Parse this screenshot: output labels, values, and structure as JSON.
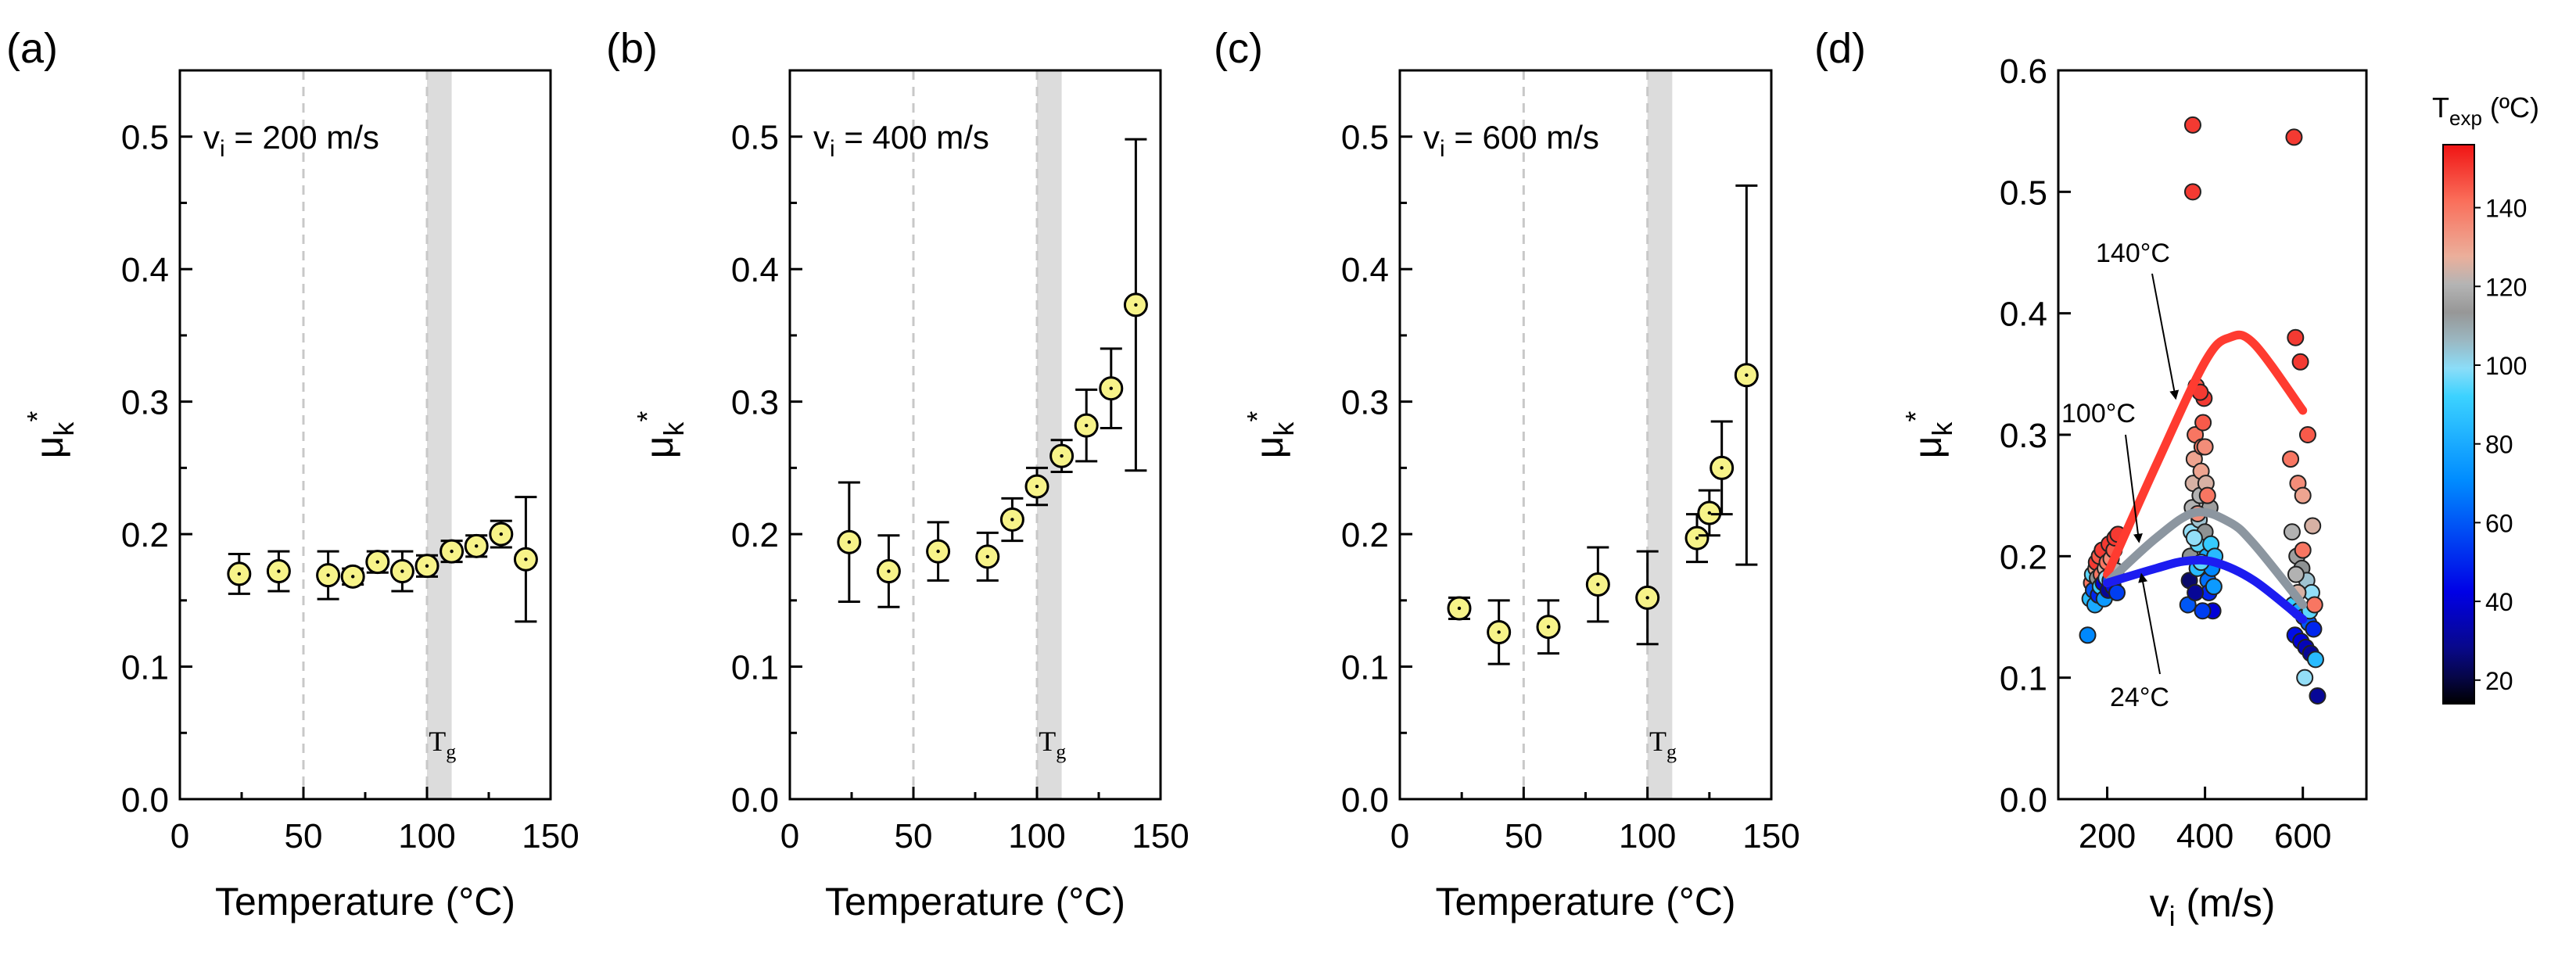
{
  "colors": {
    "marker_fill": "#f7f389",
    "marker_edge": "#000000",
    "tg_band": "#dcdcdc",
    "ref_line": "#c8c8c8",
    "curve_140": "#ff3b30",
    "curve_100": "#8c96a0",
    "curve_24": "#1c1cf0"
  },
  "chart_data": [
    {
      "type": "scatter",
      "panel_label": "(a)",
      "annotation": "v",
      "annotation_sub": "i",
      "annotation_rest": " = 200 m/s",
      "tg_label": "T",
      "tg_sub": "g",
      "tg_band": [
        100,
        110
      ],
      "ref_lines_x": [
        50,
        100
      ],
      "xlabel": "Temperature (°C)",
      "ylabel": "μ",
      "ylabel_sub": "k",
      "ylabel_sup": "*",
      "xlim": [
        0,
        150
      ],
      "ylim": [
        0,
        0.55
      ],
      "xticks": [
        "0",
        "50",
        "100",
        "150"
      ],
      "yticks": [
        "0.0",
        "0.1",
        "0.2",
        "0.3",
        "0.4",
        "0.5"
      ],
      "points": [
        {
          "x": 24,
          "y": 0.17,
          "err": 0.015
        },
        {
          "x": 40,
          "y": 0.172,
          "err": 0.015
        },
        {
          "x": 60,
          "y": 0.169,
          "err": 0.018
        },
        {
          "x": 70,
          "y": 0.168,
          "err": 0.006
        },
        {
          "x": 80,
          "y": 0.179,
          "err": 0.008
        },
        {
          "x": 90,
          "y": 0.172,
          "err": 0.015
        },
        {
          "x": 100,
          "y": 0.176,
          "err": 0.008
        },
        {
          "x": 110,
          "y": 0.187,
          "err": 0.008
        },
        {
          "x": 120,
          "y": 0.191,
          "err": 0.008
        },
        {
          "x": 130,
          "y": 0.2,
          "err": 0.01
        },
        {
          "x": 140,
          "y": 0.181,
          "err": 0.047
        }
      ]
    },
    {
      "type": "scatter",
      "panel_label": "(b)",
      "annotation": "v",
      "annotation_sub": "i",
      "annotation_rest": " = 400 m/s",
      "tg_label": "T",
      "tg_sub": "g",
      "tg_band": [
        100,
        110
      ],
      "ref_lines_x": [
        50,
        100
      ],
      "xlabel": "Temperature (°C)",
      "ylabel": "μ",
      "ylabel_sub": "k",
      "ylabel_sup": "*",
      "xlim": [
        0,
        150
      ],
      "ylim": [
        0,
        0.55
      ],
      "xticks": [
        "0",
        "50",
        "100",
        "150"
      ],
      "yticks": [
        "0.0",
        "0.1",
        "0.2",
        "0.3",
        "0.4",
        "0.5"
      ],
      "points": [
        {
          "x": 24,
          "y": 0.194,
          "err": 0.045
        },
        {
          "x": 40,
          "y": 0.172,
          "err": 0.027
        },
        {
          "x": 60,
          "y": 0.187,
          "err": 0.022
        },
        {
          "x": 80,
          "y": 0.183,
          "err": 0.018
        },
        {
          "x": 90,
          "y": 0.211,
          "err": 0.016
        },
        {
          "x": 100,
          "y": 0.236,
          "err": 0.014
        },
        {
          "x": 110,
          "y": 0.259,
          "err": 0.012
        },
        {
          "x": 120,
          "y": 0.282,
          "err": 0.027
        },
        {
          "x": 130,
          "y": 0.31,
          "err": 0.03
        },
        {
          "x": 140,
          "y": 0.373,
          "err": 0.125
        }
      ]
    },
    {
      "type": "scatter",
      "panel_label": "(c)",
      "annotation": "v",
      "annotation_sub": "i",
      "annotation_rest": " = 600 m/s",
      "tg_label": "T",
      "tg_sub": "g",
      "tg_band": [
        100,
        110
      ],
      "ref_lines_x": [
        50,
        100
      ],
      "xlabel": "Temperature (°C)",
      "ylabel": "μ",
      "ylabel_sub": "k",
      "ylabel_sup": "*",
      "xlim": [
        0,
        150
      ],
      "ylim": [
        0,
        0.55
      ],
      "xticks": [
        "0",
        "50",
        "100",
        "150"
      ],
      "yticks": [
        "0.0",
        "0.1",
        "0.2",
        "0.3",
        "0.4",
        "0.5"
      ],
      "points": [
        {
          "x": 24,
          "y": 0.144,
          "err": 0.008
        },
        {
          "x": 40,
          "y": 0.126,
          "err": 0.024
        },
        {
          "x": 60,
          "y": 0.13,
          "err": 0.02
        },
        {
          "x": 80,
          "y": 0.162,
          "err": 0.028
        },
        {
          "x": 100,
          "y": 0.152,
          "err": 0.035
        },
        {
          "x": 120,
          "y": 0.197,
          "err": 0.018
        },
        {
          "x": 125,
          "y": 0.216,
          "err": 0.017
        },
        {
          "x": 130,
          "y": 0.25,
          "err": 0.035
        },
        {
          "x": 140,
          "y": 0.32,
          "err": 0.143
        }
      ]
    },
    {
      "type": "scatter",
      "panel_label": "(d)",
      "xlabel": "v",
      "xlabel_sub": "i",
      "xlabel_rest": " (m/s)",
      "ylabel": "μ",
      "ylabel_sub": "k",
      "ylabel_sup": "*",
      "xlim": [
        100,
        730
      ],
      "ylim": [
        0,
        0.6
      ],
      "xticks": [
        "200",
        "400",
        "600"
      ],
      "yticks": [
        "0.0",
        "0.1",
        "0.2",
        "0.3",
        "0.4",
        "0.5",
        "0.6"
      ],
      "colorbar": {
        "title": "T",
        "title_sub": "exp",
        "title_rest": " (ºC)",
        "min": 14,
        "max": 156,
        "ticks": [
          "20",
          "40",
          "60",
          "80",
          "100",
          "120",
          "140"
        ]
      },
      "curves": [
        {
          "label": "140°C",
          "x": [
            200,
            300,
            400,
            450,
            500,
            600
          ],
          "y": [
            0.185,
            0.275,
            0.36,
            0.38,
            0.375,
            0.32
          ]
        },
        {
          "label": "100°C",
          "x": [
            200,
            300,
            380,
            450,
            500,
            600
          ],
          "y": [
            0.178,
            0.215,
            0.236,
            0.228,
            0.21,
            0.16
          ]
        },
        {
          "label": "24°C",
          "x": [
            200,
            300,
            360,
            420,
            500,
            600
          ],
          "y": [
            0.178,
            0.19,
            0.196,
            0.195,
            0.18,
            0.148
          ]
        }
      ],
      "points": [
        {
          "x": 160,
          "y": 0.135,
          "t": 70
        },
        {
          "x": 165,
          "y": 0.165,
          "t": 85
        },
        {
          "x": 168,
          "y": 0.178,
          "t": 140
        },
        {
          "x": 170,
          "y": 0.185,
          "t": 95
        },
        {
          "x": 172,
          "y": 0.172,
          "t": 60
        },
        {
          "x": 175,
          "y": 0.16,
          "t": 80
        },
        {
          "x": 177,
          "y": 0.19,
          "t": 130
        },
        {
          "x": 178,
          "y": 0.195,
          "t": 150
        },
        {
          "x": 180,
          "y": 0.182,
          "t": 110
        },
        {
          "x": 182,
          "y": 0.168,
          "t": 50
        },
        {
          "x": 184,
          "y": 0.2,
          "t": 145
        },
        {
          "x": 186,
          "y": 0.175,
          "t": 90
        },
        {
          "x": 188,
          "y": 0.185,
          "t": 140
        },
        {
          "x": 190,
          "y": 0.205,
          "t": 150
        },
        {
          "x": 192,
          "y": 0.178,
          "t": 40
        },
        {
          "x": 194,
          "y": 0.165,
          "t": 75
        },
        {
          "x": 196,
          "y": 0.19,
          "t": 125
        },
        {
          "x": 198,
          "y": 0.182,
          "t": 100
        },
        {
          "x": 200,
          "y": 0.195,
          "t": 140
        },
        {
          "x": 202,
          "y": 0.172,
          "t": 30
        },
        {
          "x": 204,
          "y": 0.21,
          "t": 150
        },
        {
          "x": 206,
          "y": 0.18,
          "t": 60
        },
        {
          "x": 208,
          "y": 0.198,
          "t": 135
        },
        {
          "x": 210,
          "y": 0.186,
          "t": 105
        },
        {
          "x": 212,
          "y": 0.175,
          "t": 45
        },
        {
          "x": 214,
          "y": 0.205,
          "t": 145
        },
        {
          "x": 216,
          "y": 0.215,
          "t": 150
        },
        {
          "x": 218,
          "y": 0.188,
          "t": 120
        },
        {
          "x": 220,
          "y": 0.17,
          "t": 55
        },
        {
          "x": 222,
          "y": 0.218,
          "t": 150
        },
        {
          "x": 375,
          "y": 0.555,
          "t": 150
        },
        {
          "x": 375,
          "y": 0.5,
          "t": 150
        },
        {
          "x": 365,
          "y": 0.16,
          "t": 60
        },
        {
          "x": 368,
          "y": 0.18,
          "t": 24
        },
        {
          "x": 370,
          "y": 0.2,
          "t": 110
        },
        {
          "x": 372,
          "y": 0.22,
          "t": 100
        },
        {
          "x": 374,
          "y": 0.24,
          "t": 120
        },
        {
          "x": 376,
          "y": 0.26,
          "t": 125
        },
        {
          "x": 378,
          "y": 0.28,
          "t": 130
        },
        {
          "x": 380,
          "y": 0.3,
          "t": 140
        },
        {
          "x": 382,
          "y": 0.34,
          "t": 145
        },
        {
          "x": 384,
          "y": 0.19,
          "t": 85
        },
        {
          "x": 386,
          "y": 0.21,
          "t": 95
        },
        {
          "x": 388,
          "y": 0.23,
          "t": 105
        },
        {
          "x": 390,
          "y": 0.25,
          "t": 120
        },
        {
          "x": 392,
          "y": 0.27,
          "t": 130
        },
        {
          "x": 394,
          "y": 0.29,
          "t": 140
        },
        {
          "x": 396,
          "y": 0.31,
          "t": 145
        },
        {
          "x": 398,
          "y": 0.33,
          "t": 150
        },
        {
          "x": 400,
          "y": 0.22,
          "t": 110
        },
        {
          "x": 402,
          "y": 0.26,
          "t": 125
        },
        {
          "x": 404,
          "y": 0.2,
          "t": 80
        },
        {
          "x": 406,
          "y": 0.18,
          "t": 65
        },
        {
          "x": 408,
          "y": 0.17,
          "t": 50
        },
        {
          "x": 410,
          "y": 0.24,
          "t": 115
        },
        {
          "x": 412,
          "y": 0.21,
          "t": 90
        },
        {
          "x": 414,
          "y": 0.19,
          "t": 70
        },
        {
          "x": 416,
          "y": 0.155,
          "t": 40
        },
        {
          "x": 418,
          "y": 0.175,
          "t": 75
        },
        {
          "x": 420,
          "y": 0.2,
          "t": 85
        },
        {
          "x": 395,
          "y": 0.155,
          "t": 55
        },
        {
          "x": 385,
          "y": 0.235,
          "t": 135
        },
        {
          "x": 378,
          "y": 0.215,
          "t": 100
        },
        {
          "x": 390,
          "y": 0.335,
          "t": 150
        },
        {
          "x": 400,
          "y": 0.29,
          "t": 135
        },
        {
          "x": 405,
          "y": 0.25,
          "t": 140
        },
        {
          "x": 392,
          "y": 0.195,
          "t": 95
        },
        {
          "x": 380,
          "y": 0.17,
          "t": 30
        },
        {
          "x": 582,
          "y": 0.545,
          "t": 150
        },
        {
          "x": 585,
          "y": 0.38,
          "t": 150
        },
        {
          "x": 595,
          "y": 0.36,
          "t": 150
        },
        {
          "x": 610,
          "y": 0.3,
          "t": 145
        },
        {
          "x": 575,
          "y": 0.28,
          "t": 140
        },
        {
          "x": 590,
          "y": 0.26,
          "t": 135
        },
        {
          "x": 600,
          "y": 0.25,
          "t": 130
        },
        {
          "x": 620,
          "y": 0.225,
          "t": 125
        },
        {
          "x": 578,
          "y": 0.22,
          "t": 120
        },
        {
          "x": 588,
          "y": 0.2,
          "t": 115
        },
        {
          "x": 598,
          "y": 0.19,
          "t": 110
        },
        {
          "x": 608,
          "y": 0.18,
          "t": 105
        },
        {
          "x": 618,
          "y": 0.17,
          "t": 100
        },
        {
          "x": 580,
          "y": 0.16,
          "t": 90
        },
        {
          "x": 592,
          "y": 0.155,
          "t": 80
        },
        {
          "x": 602,
          "y": 0.15,
          "t": 70
        },
        {
          "x": 612,
          "y": 0.145,
          "t": 60
        },
        {
          "x": 622,
          "y": 0.14,
          "t": 50
        },
        {
          "x": 584,
          "y": 0.135,
          "t": 45
        },
        {
          "x": 596,
          "y": 0.13,
          "t": 40
        },
        {
          "x": 606,
          "y": 0.125,
          "t": 35
        },
        {
          "x": 616,
          "y": 0.12,
          "t": 30
        },
        {
          "x": 626,
          "y": 0.115,
          "t": 85
        },
        {
          "x": 604,
          "y": 0.1,
          "t": 100
        },
        {
          "x": 630,
          "y": 0.085,
          "t": 30
        },
        {
          "x": 590,
          "y": 0.17,
          "t": 125
        },
        {
          "x": 600,
          "y": 0.205,
          "t": 140
        },
        {
          "x": 586,
          "y": 0.185,
          "t": 120
        },
        {
          "x": 614,
          "y": 0.155,
          "t": 95
        },
        {
          "x": 624,
          "y": 0.16,
          "t": 140
        }
      ]
    }
  ]
}
